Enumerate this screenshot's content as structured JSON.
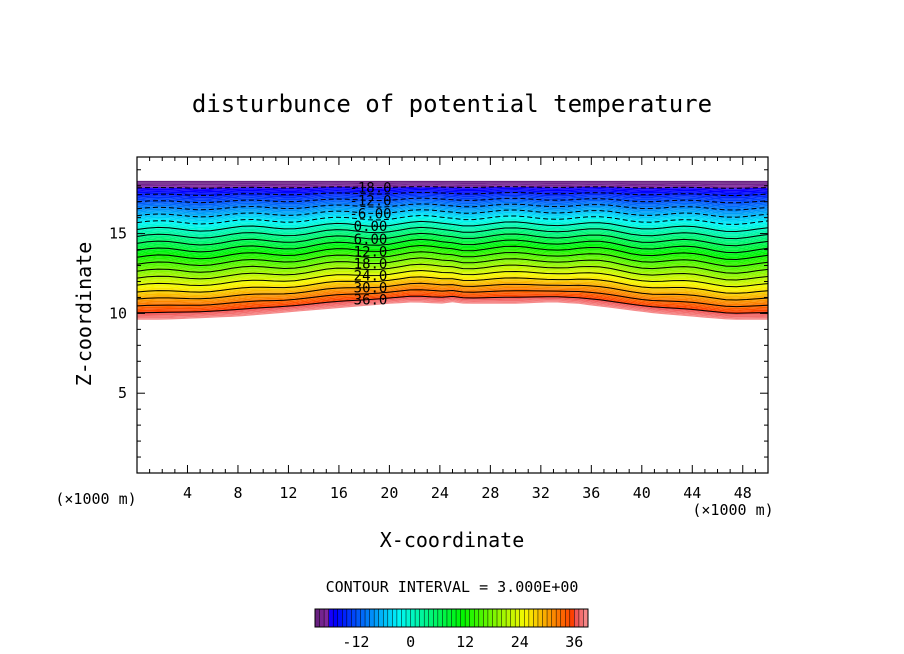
{
  "chart_data": {
    "type": "contour",
    "title": "disturbunce of potential temperature",
    "xlabel": "X-coordinate",
    "ylabel": "Z-coordinate",
    "x_unit": "(×1000 m)",
    "y_unit": "(×1000 m)",
    "xlim": [
      0,
      50
    ],
    "ylim": [
      0,
      19.8
    ],
    "x_ticks": [
      4,
      8,
      12,
      16,
      20,
      24,
      28,
      32,
      36,
      40,
      44,
      48
    ],
    "y_ticks": [
      5,
      10,
      15
    ],
    "contour_interval_text": "CONTOUR INTERVAL = 3.000E+00",
    "contour_interval": 3.0,
    "value_range": [
      -21,
      39
    ],
    "negative_contours_dashed": true,
    "contour_labels": [
      "-18.0",
      "-12.0",
      "-6.00",
      "0.00",
      "6.00",
      "12.0",
      "18.0",
      "24.0",
      "30.0",
      "36.0"
    ],
    "colorbar": {
      "tick_labels": [
        "-12",
        "0",
        "12",
        "24",
        "36"
      ],
      "tick_values": [
        -12,
        0,
        12,
        24,
        36
      ],
      "range": [
        -21,
        39
      ]
    },
    "bottom_profile": {
      "x": [
        0,
        2,
        5,
        8,
        11,
        14,
        17,
        20,
        22,
        24,
        25,
        26,
        28,
        30,
        33,
        35,
        38,
        41,
        44,
        47,
        50
      ],
      "z": [
        9.6,
        9.6,
        9.7,
        9.8,
        10.0,
        10.2,
        10.4,
        10.6,
        10.7,
        10.6,
        10.7,
        10.6,
        10.6,
        10.6,
        10.7,
        10.6,
        10.3,
        10.0,
        9.8,
        9.6,
        9.6
      ]
    },
    "top_height": 18.3
  }
}
